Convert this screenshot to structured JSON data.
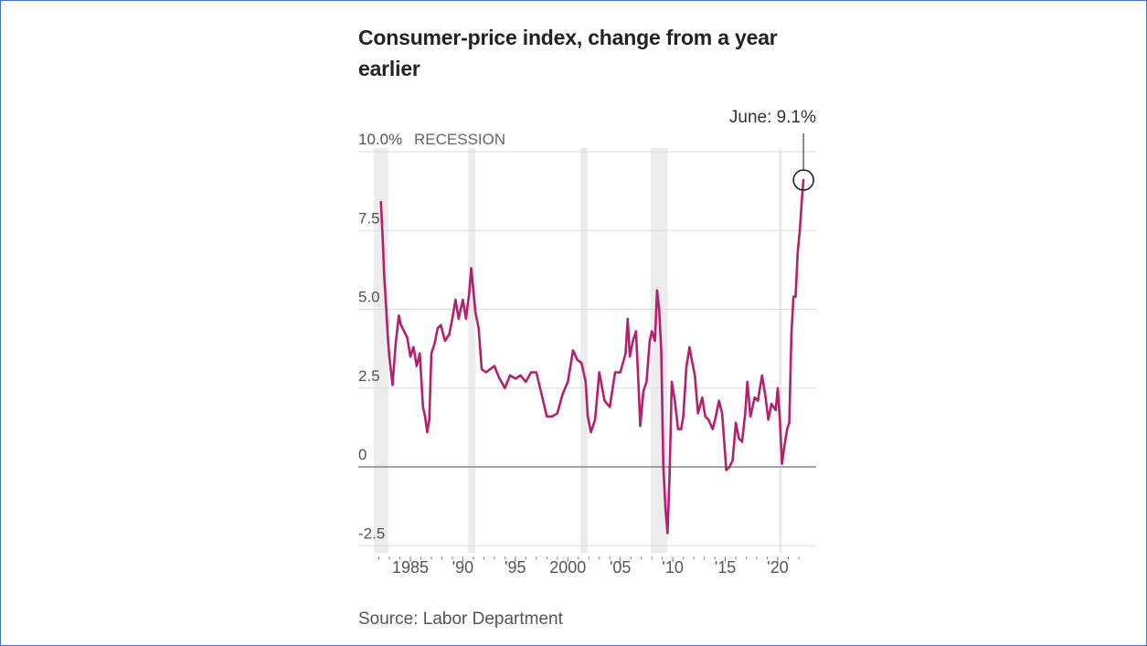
{
  "title": "Consumer-price index, change from a year earlier",
  "source": "Source: Labor Department",
  "chart_data": {
    "type": "line",
    "title": "Consumer-price index, change from a year earlier",
    "ylabel": "",
    "xlabel": "",
    "ylim": [
      -2.5,
      10.0
    ],
    "xlim": [
      1982.0,
      2023.0
    ],
    "y_ticks": [
      10.0,
      7.5,
      5.0,
      2.5,
      0,
      -2.5
    ],
    "y_tick_labels": [
      "10.0%",
      "7.5",
      "5.0",
      "2.5",
      "0",
      "-2.5"
    ],
    "x_ticks": [
      1985,
      1990,
      1995,
      2000,
      2005,
      2010,
      2015,
      2020
    ],
    "x_tick_labels": [
      "1985",
      "'90",
      "'95",
      "2000",
      "'05",
      "'10",
      "'15",
      "'20"
    ],
    "recession_label": "RECESSION",
    "recessions": [
      [
        1981.5,
        1982.9
      ],
      [
        1990.5,
        1991.2
      ],
      [
        2001.2,
        2001.9
      ],
      [
        2007.9,
        2009.5
      ],
      [
        2020.1,
        2020.4
      ]
    ],
    "annotation": {
      "text": "June: 9.1%",
      "x": 2022.45,
      "y": 9.1
    },
    "grid": true,
    "line_color": "#b5206e",
    "series": [
      {
        "x": [
          1982.2,
          1982.4,
          1982.5,
          1982.7,
          1982.9,
          1983.0,
          1983.3,
          1983.6,
          1983.9,
          1984.1,
          1984.4,
          1984.7,
          1985.0,
          1985.3,
          1985.6,
          1985.9,
          1986.2,
          1986.4,
          1986.6,
          1986.8,
          1987.0,
          1987.3,
          1987.6,
          1987.9,
          1988.3,
          1988.7,
          1989.0,
          1989.3,
          1989.6,
          1990.0,
          1990.3,
          1990.6,
          1990.8,
          1991.0,
          1991.2,
          1991.5,
          1991.8,
          1992.2,
          1992.6,
          1993.0,
          1993.5,
          1994.0,
          1994.5,
          1995.0,
          1995.5,
          1996.0,
          1996.5,
          1997.0,
          1997.5,
          1998.0,
          1998.5,
          1999.0,
          1999.5,
          2000.0,
          2000.5,
          2000.9,
          2001.3,
          2001.7,
          2001.9,
          2002.2,
          2002.6,
          2003.0,
          2003.5,
          2004.0,
          2004.5,
          2005.0,
          2005.5,
          2005.7,
          2005.9,
          2006.2,
          2006.5,
          2006.8,
          2006.9,
          2007.2,
          2007.5,
          2007.8,
          2008.0,
          2008.3,
          2008.5,
          2008.7,
          2008.9,
          2009.1,
          2009.3,
          2009.5,
          2009.7,
          2009.9,
          2010.2,
          2010.5,
          2010.8,
          2011.0,
          2011.3,
          2011.6,
          2011.8,
          2012.1,
          2012.4,
          2012.8,
          2013.1,
          2013.4,
          2013.8,
          2014.1,
          2014.4,
          2014.7,
          2014.9,
          2015.1,
          2015.4,
          2015.7,
          2016.0,
          2016.3,
          2016.6,
          2016.9,
          2017.1,
          2017.4,
          2017.8,
          2018.1,
          2018.5,
          2018.8,
          2019.1,
          2019.4,
          2019.8,
          2020.0,
          2020.2,
          2020.4,
          2020.6,
          2020.9,
          2021.1,
          2021.3,
          2021.5,
          2021.7,
          2021.9,
          2022.1,
          2022.3,
          2022.45
        ],
        "values": [
          8.4,
          7.0,
          6.1,
          5.0,
          3.9,
          3.5,
          2.6,
          3.9,
          4.8,
          4.5,
          4.3,
          4.1,
          3.5,
          3.8,
          3.2,
          3.6,
          1.9,
          1.6,
          1.1,
          1.5,
          3.6,
          3.9,
          4.4,
          4.5,
          4.0,
          4.2,
          4.7,
          5.3,
          4.7,
          5.3,
          4.7,
          5.5,
          6.3,
          5.6,
          4.9,
          4.4,
          3.1,
          3.0,
          3.1,
          3.2,
          2.8,
          2.5,
          2.9,
          2.8,
          2.9,
          2.7,
          3.0,
          3.0,
          2.3,
          1.6,
          1.6,
          1.7,
          2.3,
          2.7,
          3.7,
          3.4,
          3.3,
          2.7,
          1.6,
          1.1,
          1.5,
          3.0,
          2.1,
          1.9,
          3.0,
          3.0,
          3.6,
          4.7,
          3.5,
          4.0,
          4.3,
          2.1,
          1.3,
          2.4,
          2.7,
          4.0,
          4.3,
          4.0,
          5.6,
          5.0,
          3.7,
          0.0,
          -1.3,
          -2.1,
          -0.2,
          2.7,
          2.1,
          1.2,
          1.2,
          1.6,
          3.2,
          3.8,
          3.4,
          2.9,
          1.7,
          2.2,
          1.6,
          1.5,
          1.2,
          1.6,
          2.1,
          1.7,
          0.8,
          -0.1,
          0.0,
          0.2,
          1.4,
          0.9,
          0.8,
          1.7,
          2.7,
          1.6,
          2.2,
          2.1,
          2.9,
          2.3,
          1.5,
          2.0,
          1.8,
          2.5,
          1.5,
          0.1,
          0.6,
          1.2,
          1.4,
          4.2,
          5.4,
          5.4,
          6.8,
          7.5,
          8.5,
          9.1
        ]
      }
    ]
  }
}
